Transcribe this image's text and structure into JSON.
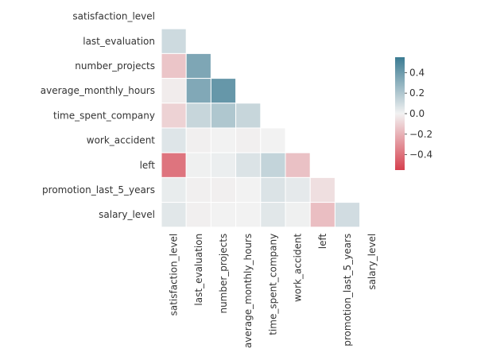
{
  "chart_data": {
    "type": "heatmap",
    "title": "",
    "variables": [
      "satisfaction_level",
      "last_evaluation",
      "number_projects",
      "average_monthly_hours",
      "time_spent_company",
      "work_accident",
      "left",
      "promotion_last_5_years",
      "salary_level"
    ],
    "mask": "upper_triangle_including_diagonal",
    "matrix": [
      [
        null,
        null,
        null,
        null,
        null,
        null,
        null,
        null,
        null
      ],
      [
        0.11,
        null,
        null,
        null,
        null,
        null,
        null,
        null,
        null
      ],
      [
        -0.14,
        0.35,
        null,
        null,
        null,
        null,
        null,
        null,
        null
      ],
      [
        -0.02,
        0.34,
        0.42,
        null,
        null,
        null,
        null,
        null,
        null
      ],
      [
        -0.1,
        0.13,
        0.2,
        0.13,
        null,
        null,
        null,
        null,
        null
      ],
      [
        0.06,
        -0.01,
        0.0,
        -0.01,
        0.0,
        null,
        null,
        null,
        null
      ],
      [
        -0.39,
        0.01,
        0.02,
        0.07,
        0.14,
        -0.15,
        null,
        null,
        null
      ],
      [
        0.03,
        -0.01,
        -0.01,
        0.0,
        0.07,
        0.04,
        -0.06,
        null,
        null
      ],
      [
        0.05,
        -0.01,
        0.0,
        0.0,
        0.05,
        0.01,
        -0.16,
        0.1,
        null
      ]
    ],
    "colorbar": {
      "min": -0.55,
      "max": 0.55,
      "ticks": [
        0.4,
        0.2,
        0.0,
        -0.2,
        -0.4
      ],
      "tick_labels": [
        "0.4",
        "0.2",
        "0.0",
        "−0.2",
        "−0.4"
      ]
    },
    "colors": {
      "negative": "#d6404e",
      "neutral": "#f2f2f2",
      "positive": "#3b7b92"
    }
  }
}
